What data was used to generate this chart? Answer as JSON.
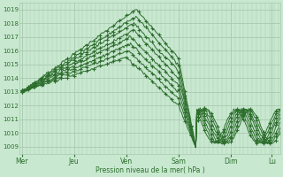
{
  "bg_color": "#c8e8d0",
  "grid_color": "#a8c8b0",
  "line_color": "#2d6e2d",
  "marker_color": "#2d6e2d",
  "ylabel_values": [
    1009,
    1010,
    1011,
    1012,
    1013,
    1014,
    1015,
    1016,
    1017,
    1018,
    1019
  ],
  "ylim": [
    1008.5,
    1019.5
  ],
  "xlabel": "Pression niveau de la mer( hPa )",
  "xtick_labels": [
    "Mer",
    "Jeu",
    "Ven",
    "Sam",
    "Dim",
    "Lu"
  ],
  "xtick_positions": [
    0,
    48,
    96,
    144,
    192,
    230
  ],
  "xlim": [
    -2,
    238
  ],
  "total_points": 240,
  "figsize": [
    3.2,
    2.0
  ],
  "dpi": 100
}
